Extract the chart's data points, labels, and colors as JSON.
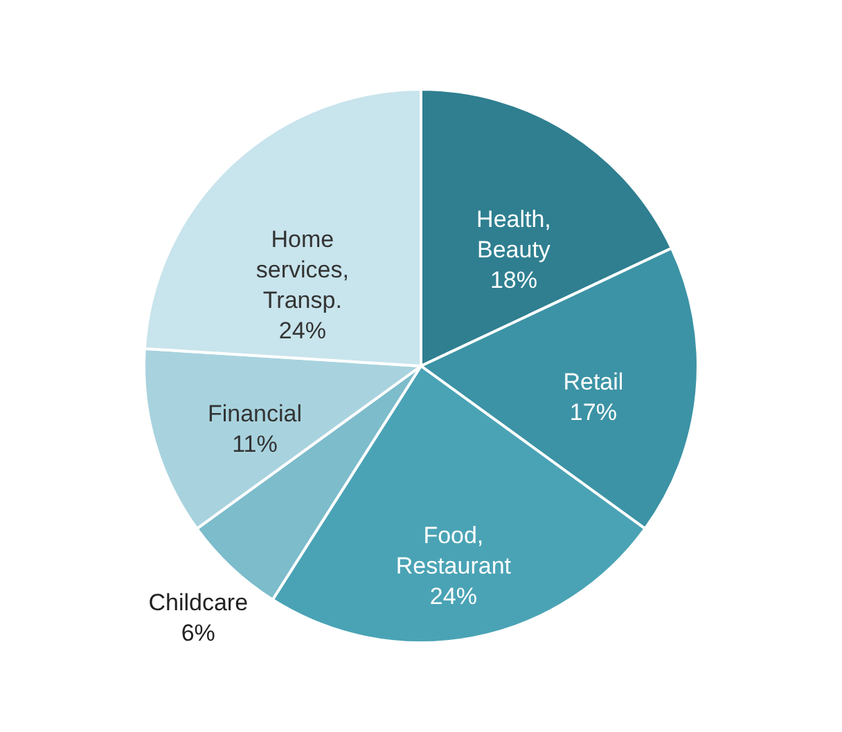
{
  "chart_data": {
    "type": "pie",
    "categories": [
      "Health, Beauty",
      "Retail",
      "Food, Restaurant",
      "Childcare",
      "Financial",
      "Home services, Transp."
    ],
    "values": [
      18,
      17,
      24,
      6,
      11,
      24
    ],
    "value_labels": [
      "18%",
      "17%",
      "24%",
      "6%",
      "11%",
      "24%"
    ],
    "colors": [
      "#2f7f90",
      "#3c93a5",
      "#4aa3b5",
      "#7cbccb",
      "#a8d3de",
      "#c8e4ec"
    ]
  }
}
